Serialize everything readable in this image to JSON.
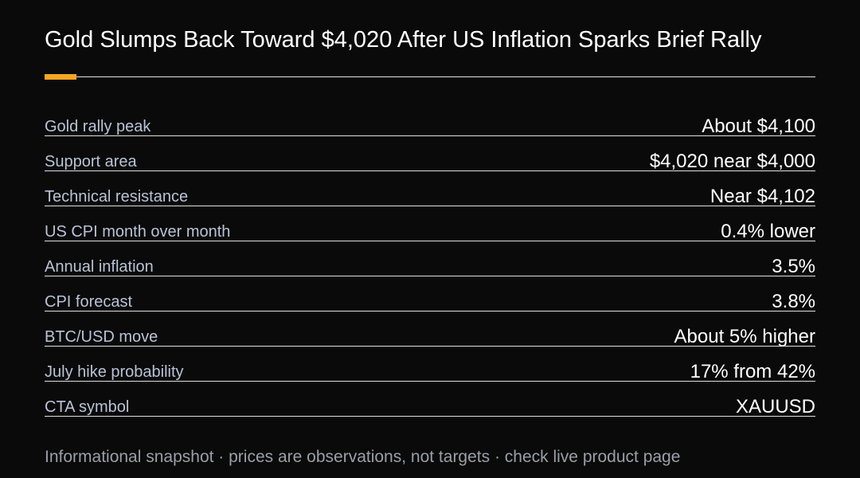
{
  "title": "Gold Slumps Back Toward $4,020 After US Inflation Sparks Brief Rally",
  "rows": [
    {
      "label": "Gold rally peak",
      "value": "About $4,100"
    },
    {
      "label": "Support area",
      "value": "$4,020 near $4,000"
    },
    {
      "label": "Technical resistance",
      "value": "Near $4,102"
    },
    {
      "label": "US CPI month over month",
      "value": "0.4% lower"
    },
    {
      "label": "Annual inflation",
      "value": "3.5%"
    },
    {
      "label": "CPI forecast",
      "value": "3.8%"
    },
    {
      "label": "BTC/USD move",
      "value": "About 5% higher"
    },
    {
      "label": "July hike probability",
      "value": "17% from 42%"
    },
    {
      "label": "CTA symbol",
      "value": "XAUUSD"
    }
  ],
  "footer": "Informational snapshot · prices are observations, not targets · check live product page"
}
